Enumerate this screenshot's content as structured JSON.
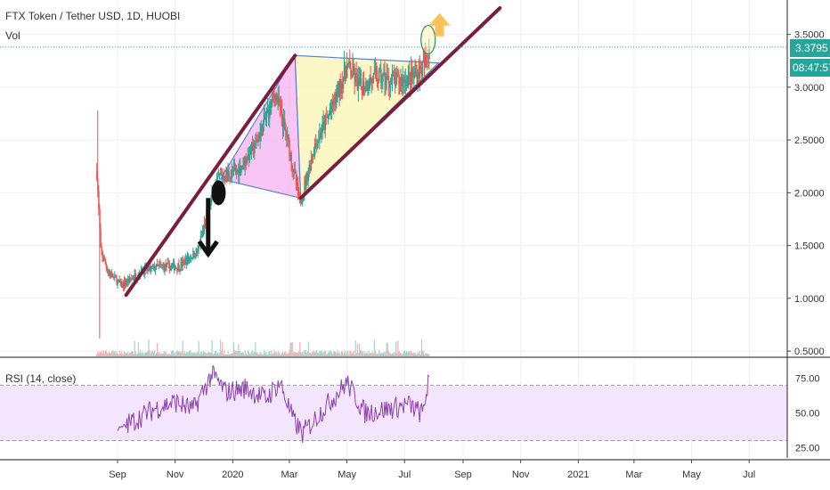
{
  "header": {
    "title": "FTX Token / Tether USD, 1D, HUOBI",
    "vol_label": "Vol"
  },
  "rsi": {
    "label": "RSI (14, close)",
    "ticks": [
      "75.00",
      "50.00",
      "25.00"
    ],
    "upper": 70,
    "lower": 30
  },
  "price_axis": {
    "ticks": [
      "3.5000",
      "3.0000",
      "2.5000",
      "2.0000",
      "1.5000",
      "1.0000",
      "0.5000"
    ],
    "last_price": "3.3795",
    "countdown": "08:47:57"
  },
  "time_axis": {
    "labels": [
      "Sep",
      "Nov",
      "2020",
      "Mar",
      "May",
      "Jul",
      "Sep",
      "Nov",
      "2021",
      "Mar",
      "May",
      "Jul"
    ]
  },
  "colors": {
    "up": "#26a69a",
    "down": "#ef5350",
    "trend": "#7b1d3f",
    "triangle_edge": "#5b7fd6",
    "pink_fill": "#f4b3f0",
    "yellow_fill": "#fbf6b8",
    "rsi_line": "#8e44ad",
    "rsi_band": "#f3e5fb",
    "arrow_up": "#fbc25a"
  },
  "chart_data": {
    "type": "candlestick",
    "symbol": "FTX Token / Tether USD",
    "interval": "1D",
    "exchange": "HUOBI",
    "last_close": 3.3795,
    "ylim": [
      0.45,
      3.75
    ],
    "rsi_ylim": [
      22,
      85
    ],
    "price_path": [
      {
        "date": "2019-08-10",
        "close": 2.2
      },
      {
        "date": "2019-08-14",
        "close": 1.45
      },
      {
        "date": "2019-08-22",
        "close": 1.25
      },
      {
        "date": "2019-09-05",
        "close": 1.12
      },
      {
        "date": "2019-09-25",
        "close": 1.25
      },
      {
        "date": "2019-10-15",
        "close": 1.3
      },
      {
        "date": "2019-11-05",
        "close": 1.3
      },
      {
        "date": "2019-11-25",
        "close": 1.45
      },
      {
        "date": "2019-12-08",
        "close": 1.9
      },
      {
        "date": "2019-12-18",
        "close": 2.15
      },
      {
        "date": "2020-01-05",
        "close": 2.2
      },
      {
        "date": "2020-01-25",
        "close": 2.45
      },
      {
        "date": "2020-02-15",
        "close": 2.95
      },
      {
        "date": "2020-02-28",
        "close": 2.5
      },
      {
        "date": "2020-03-12",
        "close": 1.9
      },
      {
        "date": "2020-03-28",
        "close": 2.45
      },
      {
        "date": "2020-04-15",
        "close": 2.8
      },
      {
        "date": "2020-05-01",
        "close": 3.2
      },
      {
        "date": "2020-05-15",
        "close": 3.0
      },
      {
        "date": "2020-06-01",
        "close": 3.1
      },
      {
        "date": "2020-06-20",
        "close": 3.05
      },
      {
        "date": "2020-07-10",
        "close": 3.1
      },
      {
        "date": "2020-07-22",
        "close": 3.2
      },
      {
        "date": "2020-07-27",
        "close": 3.3795
      }
    ],
    "rsi_path": [
      {
        "date": "2019-09-01",
        "rsi": 38
      },
      {
        "date": "2019-09-20",
        "rsi": 45
      },
      {
        "date": "2019-10-10",
        "rsi": 53
      },
      {
        "date": "2019-11-01",
        "rsi": 58
      },
      {
        "date": "2019-11-20",
        "rsi": 52
      },
      {
        "date": "2019-12-10",
        "rsi": 78
      },
      {
        "date": "2019-12-25",
        "rsi": 65
      },
      {
        "date": "2020-01-15",
        "rsi": 68
      },
      {
        "date": "2020-02-05",
        "rsi": 60
      },
      {
        "date": "2020-02-20",
        "rsi": 72
      },
      {
        "date": "2020-03-05",
        "rsi": 45
      },
      {
        "date": "2020-03-15",
        "rsi": 35
      },
      {
        "date": "2020-04-05",
        "rsi": 52
      },
      {
        "date": "2020-05-01",
        "rsi": 72
      },
      {
        "date": "2020-05-20",
        "rsi": 50
      },
      {
        "date": "2020-06-15",
        "rsi": 53
      },
      {
        "date": "2020-07-05",
        "rsi": 56
      },
      {
        "date": "2020-07-20",
        "rsi": 49
      },
      {
        "date": "2020-07-27",
        "rsi": 76
      }
    ],
    "annotations": {
      "rising_wedge_upper": [
        {
          "date": "2019-09-10",
          "price": 1.03
        },
        {
          "date": "2020-03-07",
          "price": 3.3
        }
      ],
      "support_line": [
        {
          "date": "2020-03-13",
          "price": 1.95
        },
        {
          "date": "2020-10-10",
          "price": 3.75
        }
      ],
      "pink_triangle": [
        {
          "date": "2019-12-19",
          "price": 2.13
        },
        {
          "date": "2020-03-07",
          "price": 3.3
        },
        {
          "date": "2020-03-13",
          "price": 1.95
        }
      ],
      "yellow_triangle": [
        {
          "date": "2020-03-07",
          "price": 3.3
        },
        {
          "date": "2020-03-13",
          "price": 1.95
        },
        {
          "date": "2020-08-06",
          "price": 3.23
        }
      ],
      "down_arrow": {
        "date": "2019-12-06",
        "from": 1.95,
        "to": 1.42
      },
      "black_ellipse": {
        "date": "2019-12-17",
        "price": 2.0
      },
      "circle_marker": {
        "date": "2020-07-26",
        "price": 3.45
      },
      "up_arrow": {
        "date": "2020-08-07",
        "price": 3.6
      }
    }
  }
}
